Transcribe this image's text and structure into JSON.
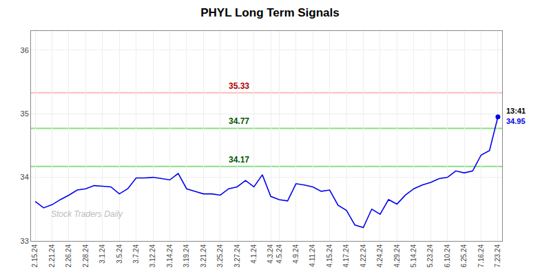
{
  "chart_data": {
    "type": "line",
    "title": "PHYL Long Term Signals",
    "categories": [
      "2.15.24",
      null,
      "2.21.24",
      null,
      "2.26.24",
      null,
      "2.28.24",
      null,
      "3.1.24",
      null,
      "3.5.24",
      null,
      "3.7.24",
      null,
      "3.12.24",
      null,
      "3.14.24",
      null,
      "3.19.24",
      null,
      "3.21.24",
      null,
      "3.25.24",
      null,
      "3.27.24",
      null,
      "4.1.24",
      null,
      "4.3.24",
      "4.5.24",
      null,
      "4.9.24",
      null,
      "4.11.24",
      null,
      "4.15.24",
      null,
      "4.17.24",
      null,
      "4.22.24",
      null,
      "4.24.24",
      null,
      "4.29.24",
      null,
      "5.14.24",
      null,
      "5.23.24",
      null,
      "6.10.24",
      null,
      "6.25.24",
      null,
      "7.16.24",
      null,
      "7.23.24"
    ],
    "values": [
      33.62,
      33.52,
      33.57,
      33.65,
      33.72,
      33.8,
      33.82,
      33.87,
      33.86,
      33.85,
      33.74,
      33.82,
      33.99,
      33.99,
      34.0,
      33.98,
      33.96,
      34.06,
      33.82,
      33.78,
      33.74,
      33.74,
      33.72,
      33.82,
      33.85,
      33.95,
      33.85,
      34.04,
      33.7,
      33.65,
      33.63,
      33.9,
      33.88,
      33.85,
      33.78,
      33.8,
      33.56,
      33.48,
      33.25,
      33.21,
      33.5,
      33.42,
      33.65,
      33.58,
      33.72,
      33.82,
      33.88,
      33.92,
      33.98,
      34.0,
      34.1,
      34.07,
      34.1,
      34.35,
      34.42,
      34.95
    ],
    "color": "#0000ee",
    "ylim": [
      33.0,
      36.3
    ],
    "yticks": [
      33,
      34,
      35,
      36
    ],
    "grid": true,
    "reference_lines": [
      {
        "value": 35.33,
        "label": "35.33",
        "color": "#ffbbbb",
        "label_color": "#aa0000"
      },
      {
        "value": 34.77,
        "label": "34.77",
        "color": "#88dd88",
        "label_color": "#005500"
      },
      {
        "value": 34.17,
        "label": "34.17",
        "color": "#88dd88",
        "label_color": "#005500"
      }
    ],
    "annotations": [
      {
        "text": "13:41",
        "color": "#000000"
      },
      {
        "text": "34.95",
        "color": "#0000ee"
      }
    ],
    "watermark": {
      "text": "Stock Traders Daily",
      "color": "#bbbbbb"
    }
  }
}
